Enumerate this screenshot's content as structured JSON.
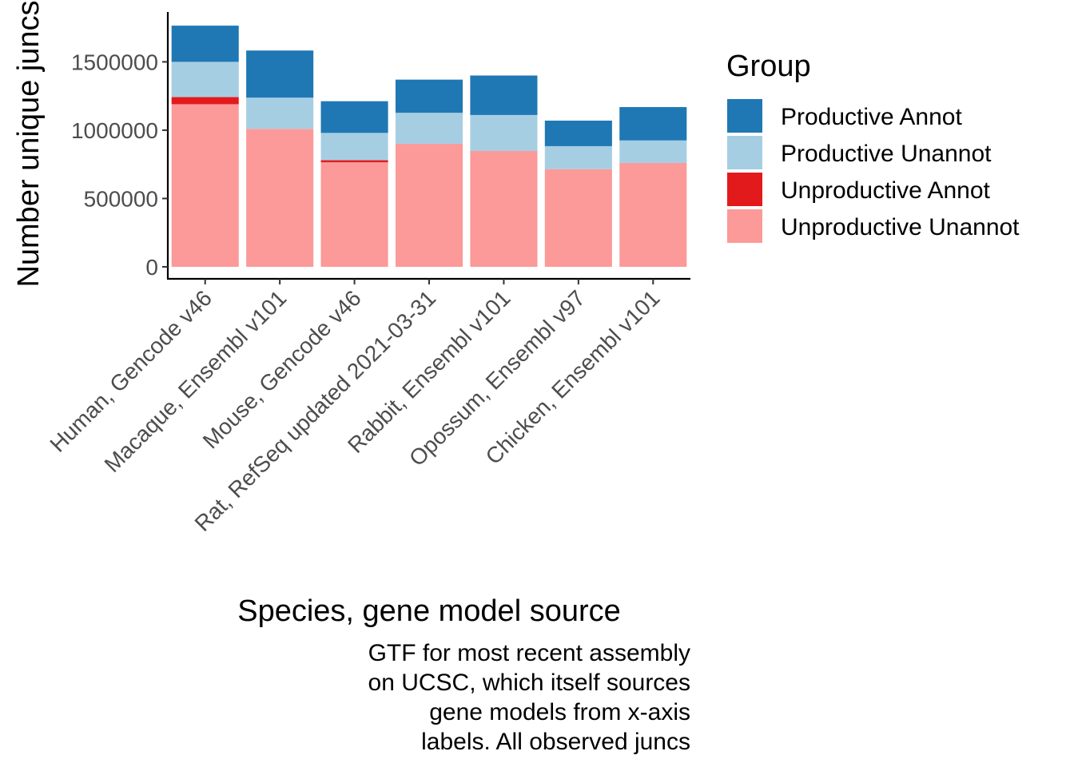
{
  "chart_data": {
    "type": "bar",
    "stacked": true,
    "categories": [
      "Human, Gencode v46",
      "Macaque, Ensembl v101",
      "Mouse, Gencode v46",
      "Rat, RefSeq updated 2021-03-31",
      "Rabbit, Ensembl v101",
      "Opossum, Ensembl v97",
      "Chicken, Ensembl v101"
    ],
    "series": [
      {
        "name": "Unproductive Unannot",
        "color": "#fb9a99",
        "values": [
          1190000,
          1010000,
          765000,
          900000,
          848000,
          715000,
          760000
        ]
      },
      {
        "name": "Unproductive Annot",
        "color": "#e31a1c",
        "values": [
          52000,
          0,
          15000,
          0,
          0,
          0,
          0
        ]
      },
      {
        "name": "Productive Unannot",
        "color": "#a6cee3",
        "values": [
          258000,
          228000,
          200000,
          227000,
          263000,
          168000,
          165000
        ]
      },
      {
        "name": "Productive Annot",
        "color": "#1f78b4",
        "values": [
          265000,
          345000,
          232000,
          243000,
          289000,
          187000,
          244000
        ]
      }
    ],
    "xlabel": "Species, gene model source",
    "ylabel": "Number unique juncs",
    "yticks": [
      0,
      500000,
      1000000,
      1500000
    ],
    "ylim": [
      -88000,
      1865000
    ],
    "legend": {
      "title": "Group",
      "position": "right",
      "order": [
        "Productive Annot",
        "Productive Unannot",
        "Unproductive Annot",
        "Unproductive Unannot"
      ]
    },
    "caption": [
      "GTF for most recent assembly",
      "on UCSC, which itself sources",
      "gene models from x-axis",
      "labels. All observed juncs"
    ],
    "grid": false
  }
}
